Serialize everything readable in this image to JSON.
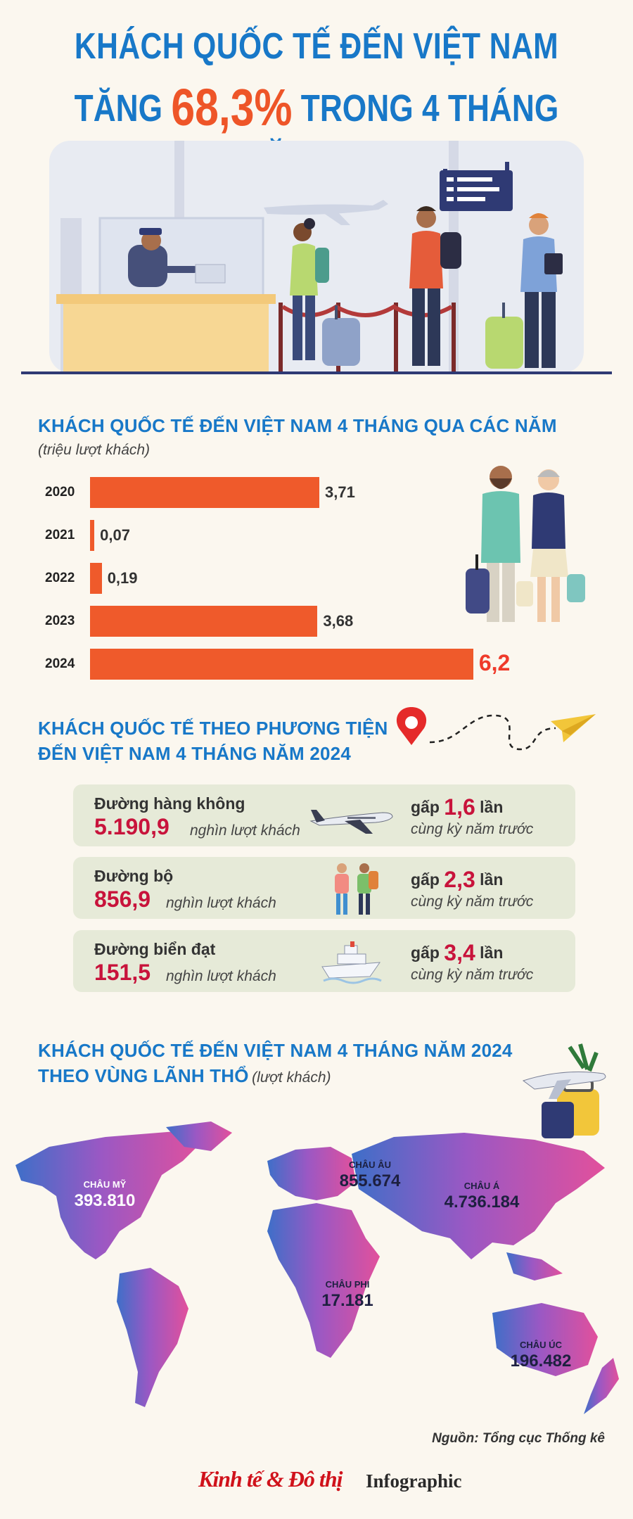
{
  "header": {
    "title_line1": "KHÁCH QUỐC TẾ ĐẾN VIỆT NAM",
    "title_line2_prefix": "TĂNG",
    "title_line2_highlight": "68,3%",
    "title_line2_suffix": "TRONG 4 THÁNG NĂM 2024"
  },
  "section1": {
    "title": "KHÁCH QUỐC TẾ ĐẾN VIỆT NAM 4 THÁNG QUA CÁC NĂM",
    "unit": "(triệu lượt khách)"
  },
  "chart_data": {
    "type": "bar",
    "orientation": "horizontal",
    "title": "KHÁCH QUỐC TẾ ĐẾN VIỆT NAM 4 THÁNG QUA CÁC NĂM",
    "categories": [
      "2020",
      "2021",
      "2022",
      "2023",
      "2024"
    ],
    "values": [
      3.71,
      0.07,
      0.19,
      3.68,
      6.2
    ],
    "value_labels": [
      "3,71",
      "0,07",
      "0,19",
      "3,68",
      "6,2"
    ],
    "unit": "(triệu lượt khách)",
    "xlim": [
      0,
      6.6
    ],
    "bar_color": "#ef5a2b",
    "highlight_label_color": "#ef3a2a"
  },
  "section2": {
    "title_line1": "KHÁCH QUỐC TẾ THEO PHƯƠNG TIỆN",
    "title_line2": "ĐẾN VIỆT NAM 4 THÁNG NĂM 2024",
    "cards": [
      {
        "name": "Đường hàng không",
        "value": "5.190,9",
        "unit": "nghìn lượt khách",
        "prefix": "gấp",
        "multiple": "1,6",
        "suffix": "lần",
        "note": "cùng kỳ năm trước",
        "icon": "airplane-icon"
      },
      {
        "name": "Đường bộ",
        "value": "856,9",
        "unit": "nghìn lượt khách",
        "prefix": "gấp",
        "multiple": "2,3",
        "suffix": "lần",
        "note": "cùng kỳ năm trước",
        "icon": "hikers-icon"
      },
      {
        "name": "Đường biển đạt",
        "value": "151,5",
        "unit": "nghìn lượt khách",
        "prefix": "gấp",
        "multiple": "3,4",
        "suffix": "lần",
        "note": "cùng kỳ năm trước",
        "icon": "cruise-ship-icon"
      }
    ]
  },
  "section3": {
    "title_line1": "KHÁCH QUỐC TẾ ĐẾN VIỆT NAM 4 THÁNG NĂM 2024",
    "title_line2": "THEO VÙNG LÃNH THỔ",
    "unit": "(lượt khách)",
    "regions": [
      {
        "name": "CHÂU MỸ",
        "value": "393.810"
      },
      {
        "name": "CHÂU ÂU",
        "value": "855.674"
      },
      {
        "name": "CHÂU Á",
        "value": "4.736.184"
      },
      {
        "name": "CHÂU PHI",
        "value": "17.181"
      },
      {
        "name": "CHÂU ÚC",
        "value": "196.482"
      }
    ]
  },
  "footer": {
    "source": "Nguồn: Tổng cục Thống kê",
    "brand": "Kinh tế & Đô thị",
    "brand_suffix": "Infographic"
  },
  "colors": {
    "title_blue": "#1878c8",
    "accent_orange": "#ee5528",
    "value_red": "#c8133b",
    "card_bg": "#e6ead8",
    "background": "#fbf7ef",
    "brand_red": "#d0121b"
  }
}
